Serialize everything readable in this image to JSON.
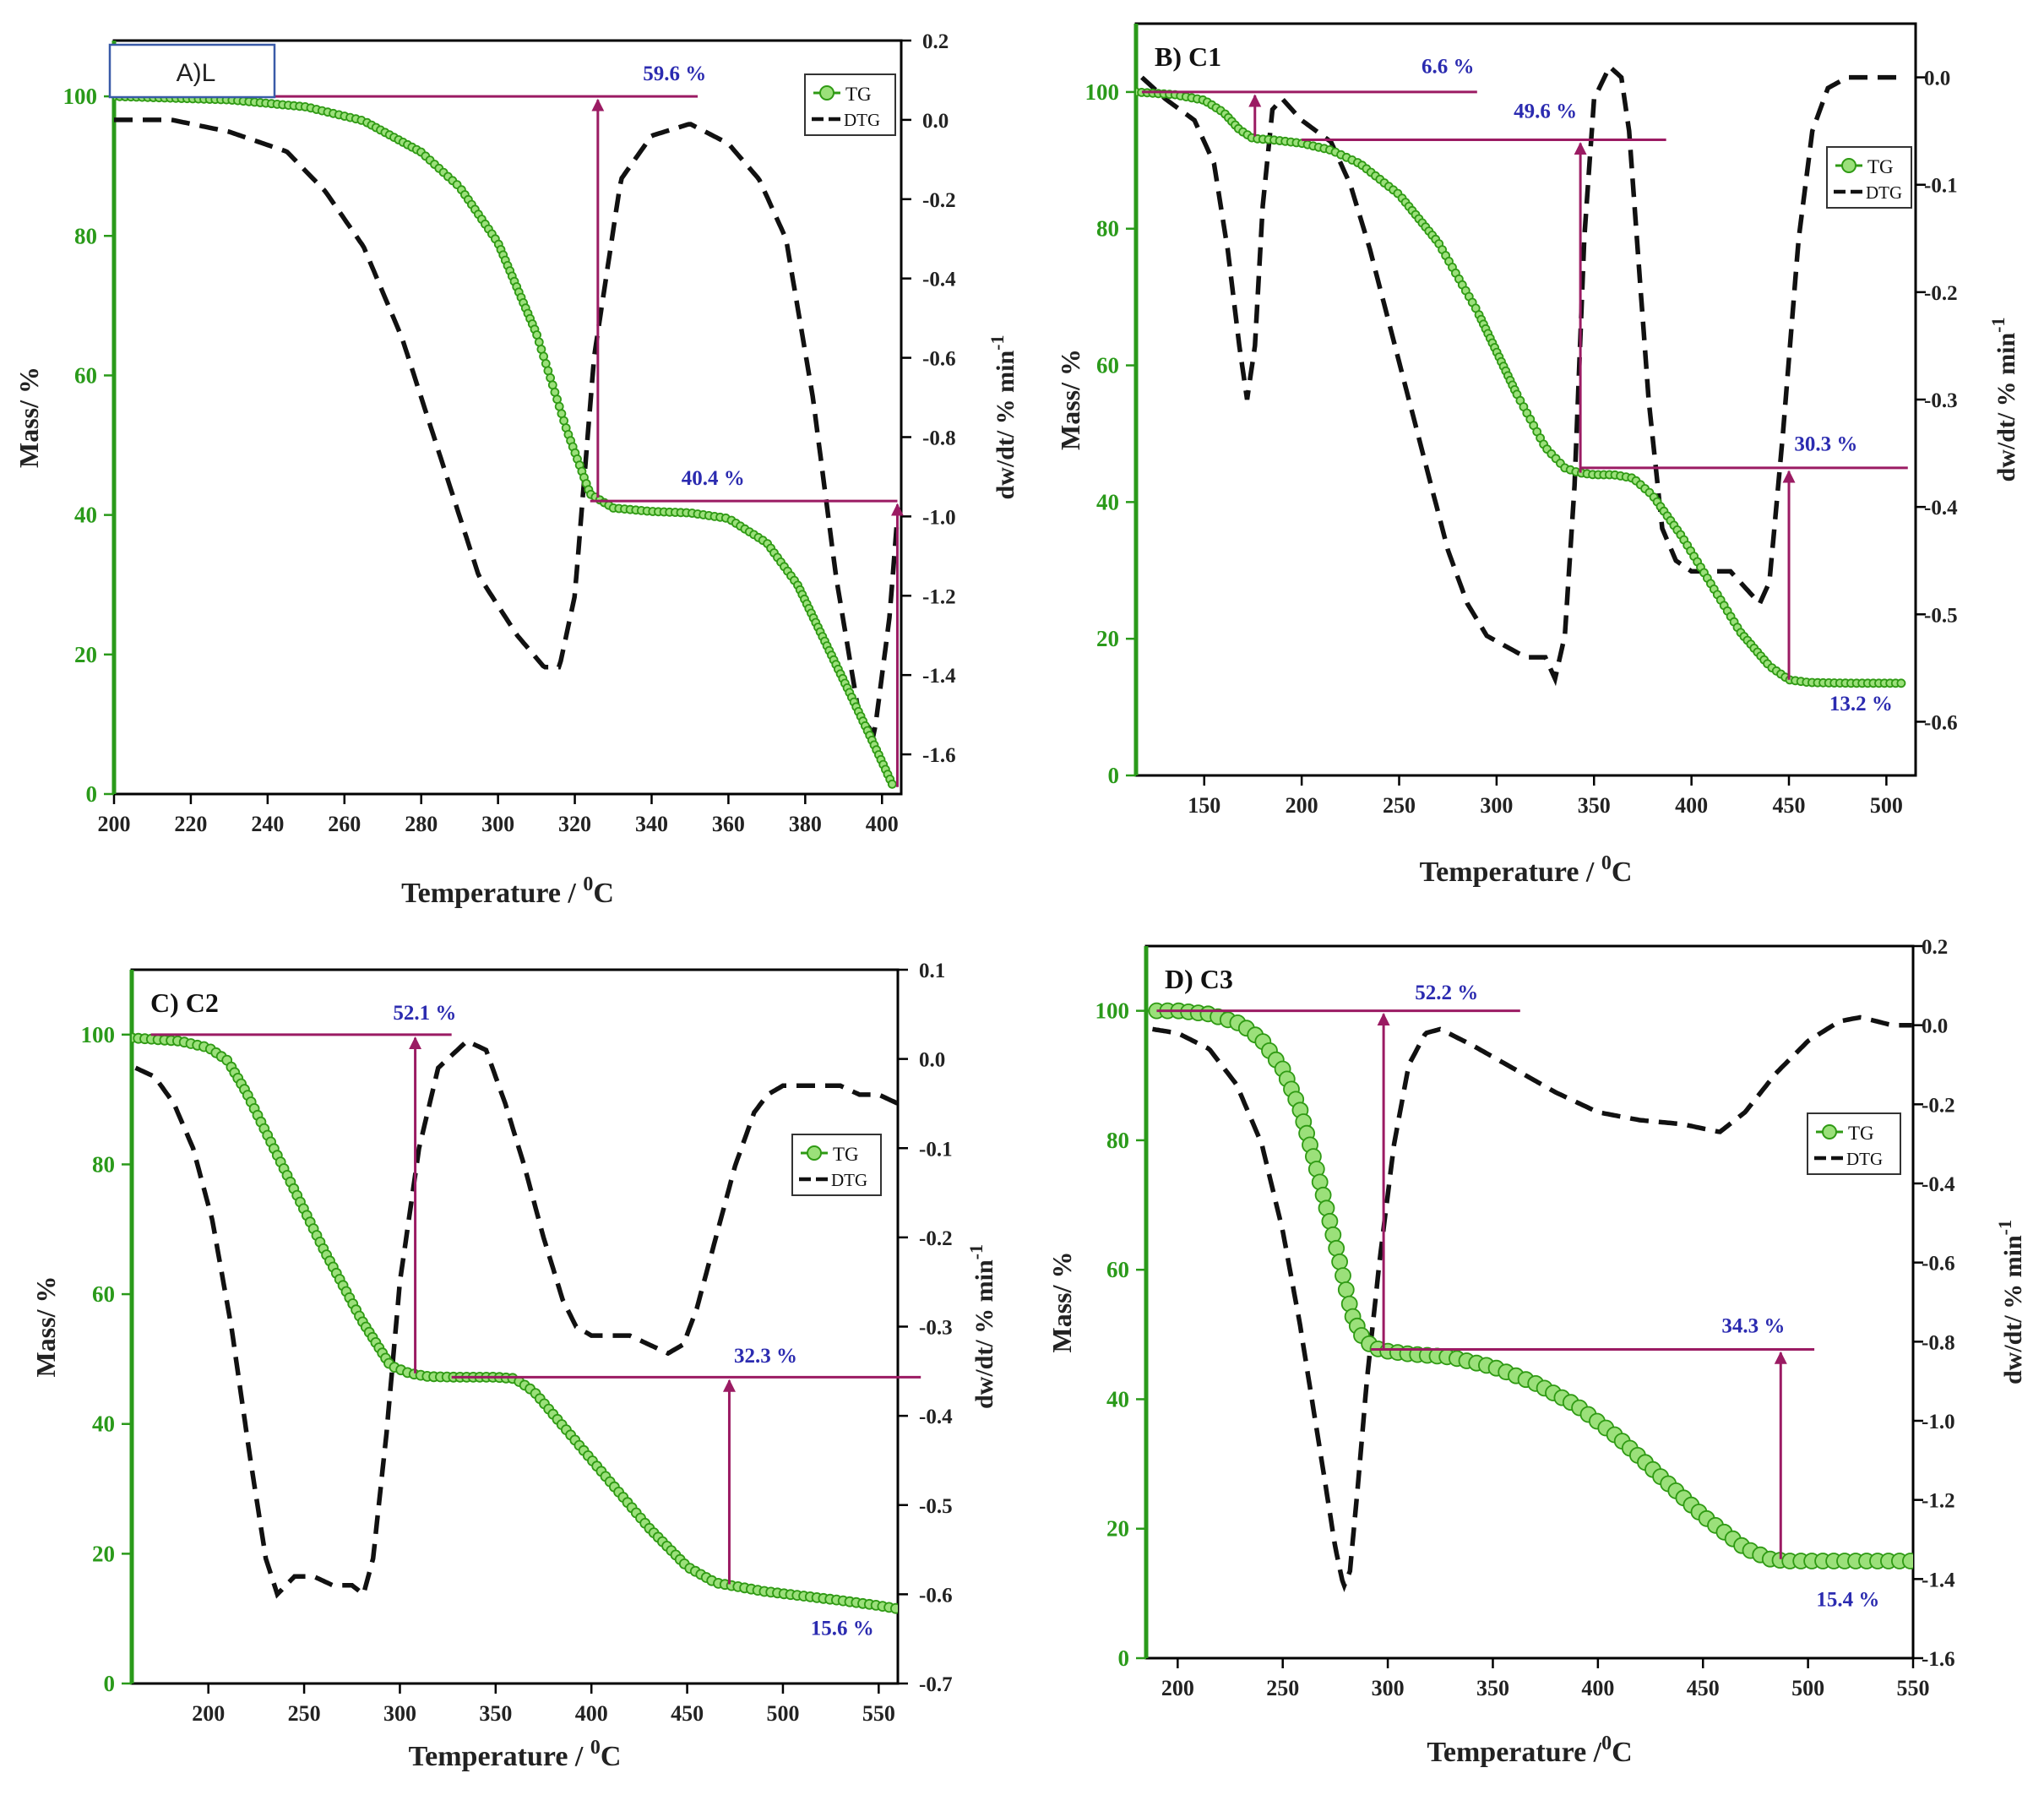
{
  "colors": {
    "tg": "#2f9a14",
    "tg_fill": "#9be07a",
    "axis_left": "#2a9a1a",
    "magenta": "#9b1b63",
    "annotation": "#2b2bb0",
    "dtg": "#111111"
  },
  "chart_data": [
    {
      "type": "line",
      "panel_title": "A)L",
      "xlabel": "Temperature / ",
      "xlabel_sup": "0",
      "xlabel_tail": "C",
      "ylabel": "Mass/ %",
      "y2label": "dw/dt/ % min",
      "y2label_sup": "-1",
      "xlim": [
        200,
        405
      ],
      "xticks": [
        200,
        220,
        240,
        260,
        280,
        300,
        320,
        340,
        360,
        380,
        400
      ],
      "ylim": [
        0,
        108
      ],
      "yticks": [
        0,
        20,
        40,
        60,
        80,
        100
      ],
      "y2lim": [
        -1.7,
        0.2
      ],
      "y2ticks": [
        0.2,
        0.0,
        -0.2,
        -0.4,
        -0.6,
        -0.8,
        -1.0,
        -1.2,
        -1.4,
        -1.6
      ],
      "y2tick_labels": [
        "0.2",
        "0.0",
        "-0.2",
        "-0.4",
        "-0.6",
        "-0.8",
        "-1.0",
        "-1.2",
        "-1.4",
        "-1.6"
      ],
      "legend": {
        "position": "top-right",
        "tg_label": "TG",
        "dtg_label": "DTG"
      },
      "series": [
        {
          "name": "TG",
          "axis": "left",
          "x": [
            200,
            230,
            250,
            265,
            280,
            290,
            300,
            310,
            318,
            324,
            330,
            340,
            350,
            360,
            370,
            378,
            385,
            392,
            398,
            403
          ],
          "y": [
            100,
            99.5,
            98.5,
            96.5,
            92,
            87,
            79,
            66,
            52,
            43,
            41,
            40.5,
            40.3,
            39.5,
            36,
            30,
            22,
            14,
            7,
            1
          ]
        },
        {
          "name": "DTG",
          "axis": "right",
          "x": [
            200,
            215,
            230,
            245,
            255,
            265,
            275,
            285,
            295,
            305,
            312,
            316,
            320,
            325,
            332,
            340,
            350,
            360,
            368,
            375,
            382,
            388,
            394,
            398,
            402,
            404
          ],
          "y": [
            0.0,
            0.0,
            -0.03,
            -0.08,
            -0.18,
            -0.32,
            -0.55,
            -0.85,
            -1.15,
            -1.3,
            -1.38,
            -1.38,
            -1.2,
            -0.6,
            -0.15,
            -0.04,
            -0.01,
            -0.06,
            -0.15,
            -0.3,
            -0.7,
            -1.15,
            -1.5,
            -1.55,
            -1.25,
            -1.0
          ]
        }
      ],
      "annotations": [
        {
          "text": "59.6 %",
          "label_x": 346,
          "label_y": 102.3,
          "hline": {
            "x0": 200,
            "x1": 352,
            "y": 100
          },
          "arrow": {
            "x": 326,
            "y_from": 42.5,
            "y_to": 99.5
          }
        },
        {
          "text": "40.4 %",
          "label_x": 356,
          "label_y": 44.3,
          "hline": {
            "x0": 324,
            "x1": 404,
            "y": 42
          },
          "arrow": {
            "x": 404,
            "y_from": 1,
            "y_to": 41.5
          }
        }
      ]
    },
    {
      "type": "line",
      "panel_title": "B) C1",
      "xlabel": "Temperature / ",
      "xlabel_sup": "0",
      "xlabel_tail": "C",
      "ylabel": "Mass/ %",
      "y2label": "dw/dt/ % min",
      "y2label_sup": "-1",
      "xlim": [
        115,
        515
      ],
      "xticks": [
        150,
        200,
        250,
        300,
        350,
        400,
        450,
        500
      ],
      "ylim": [
        0,
        110
      ],
      "yticks": [
        0,
        20,
        40,
        60,
        80,
        100
      ],
      "y2lim": [
        -0.65,
        0.05
      ],
      "y2ticks": [
        0.0,
        -0.1,
        -0.2,
        -0.3,
        -0.4,
        -0.5,
        -0.6
      ],
      "y2tick_labels": [
        "0.0",
        "-0.1",
        "-0.2",
        "-0.3",
        "-0.4",
        "-0.5",
        "-0.6"
      ],
      "legend": {
        "position": "top-right",
        "tg_label": "TG",
        "dtg_label": "DTG"
      },
      "series": [
        {
          "name": "TG",
          "axis": "left",
          "x": [
            115,
            135,
            150,
            160,
            168,
            175,
            185,
            200,
            215,
            230,
            250,
            270,
            290,
            310,
            325,
            335,
            342,
            350,
            360,
            370,
            380,
            395,
            410,
            425,
            440,
            450,
            460,
            480,
            510
          ],
          "y": [
            100,
            99.6,
            98.8,
            97,
            94.5,
            93.2,
            93,
            92.5,
            91.5,
            89.5,
            85,
            78,
            68,
            56,
            48,
            45,
            44.3,
            44,
            44,
            43.5,
            41,
            35,
            28,
            21,
            16,
            14,
            13.6,
            13.5,
            13.5
          ]
        },
        {
          "name": "DTG",
          "axis": "right",
          "x": [
            118,
            130,
            145,
            155,
            162,
            168,
            172,
            176,
            180,
            185,
            190,
            200,
            215,
            225,
            235,
            245,
            255,
            265,
            275,
            285,
            295,
            305,
            315,
            325,
            330,
            335,
            340,
            345,
            350,
            358,
            364,
            368,
            372,
            378,
            385,
            392,
            400,
            410,
            420,
            430,
            435,
            440,
            447,
            455,
            462,
            470,
            480,
            495,
            510
          ],
          "y": [
            0.0,
            -0.02,
            -0.04,
            -0.08,
            -0.16,
            -0.25,
            -0.3,
            -0.25,
            -0.12,
            -0.03,
            -0.02,
            -0.04,
            -0.06,
            -0.1,
            -0.16,
            -0.23,
            -0.3,
            -0.37,
            -0.44,
            -0.49,
            -0.52,
            -0.53,
            -0.54,
            -0.54,
            -0.56,
            -0.52,
            -0.38,
            -0.15,
            -0.02,
            0.01,
            0.0,
            -0.05,
            -0.15,
            -0.3,
            -0.42,
            -0.45,
            -0.46,
            -0.46,
            -0.46,
            -0.48,
            -0.49,
            -0.47,
            -0.33,
            -0.15,
            -0.05,
            -0.01,
            0.0,
            0.0,
            0.0
          ]
        }
      ],
      "annotations": [
        {
          "text": "6.6 %",
          "label_x": 275,
          "label_y": 102.8,
          "hline": {
            "x0": 118,
            "x1": 290,
            "y": 100
          },
          "arrow": {
            "x": 176,
            "y_from": 93.5,
            "y_to": 99.5
          }
        },
        {
          "text": "49.6 %",
          "label_x": 325,
          "label_y": 96.2,
          "hline": {
            "x0": 200,
            "x1": 387,
            "y": 93
          },
          "arrow": {
            "x": 343,
            "y_from": 44.3,
            "y_to": 92.5
          }
        },
        {
          "text": "30.3 %",
          "label_x": 469,
          "label_y": 47.5,
          "hline": {
            "x0": 343,
            "x1": 511,
            "y": 45
          },
          "arrow": {
            "x": 450,
            "y_from": 14,
            "y_to": 44.5
          }
        },
        {
          "text": "13.2 %",
          "label_x": 487,
          "label_y": 9.5,
          "hline": null,
          "arrow": null
        }
      ]
    },
    {
      "type": "line",
      "panel_title": "C) C2",
      "xlabel": "Temperature / ",
      "xlabel_sup": "0",
      "xlabel_tail": "C",
      "ylabel": "Mass/ %",
      "y2label": "dw/dt/ % min",
      "y2label_sup": "-1",
      "xlim": [
        160,
        560
      ],
      "xticks": [
        200,
        250,
        300,
        350,
        400,
        450,
        500,
        550
      ],
      "ylim": [
        0,
        110
      ],
      "yticks": [
        0,
        20,
        40,
        60,
        80,
        100
      ],
      "y2lim": [
        -0.7,
        0.1
      ],
      "y2ticks": [
        0.1,
        0.0,
        -0.1,
        -0.2,
        -0.3,
        -0.4,
        -0.5,
        -0.6,
        -0.7
      ],
      "y2tick_labels": [
        "0.1",
        "0.0",
        "-0.1",
        "-0.2",
        "-0.3",
        "-0.4",
        "-0.5",
        "-0.6",
        "-0.7"
      ],
      "legend": {
        "position": "right",
        "tg_label": "TG",
        "dtg_label": "DTG"
      },
      "series": [
        {
          "name": "TG",
          "axis": "left",
          "x": [
            160,
            185,
            200,
            210,
            220,
            240,
            260,
            280,
            295,
            305,
            315,
            330,
            350,
            360,
            370,
            390,
            410,
            430,
            450,
            465,
            475,
            490,
            510,
            530,
            550,
            560
          ],
          "y": [
            99.5,
            99,
            98,
            96,
            91,
            79,
            67,
            56,
            49,
            47.8,
            47.3,
            47.2,
            47.2,
            47,
            45,
            38,
            31,
            24,
            18,
            15.5,
            15,
            14.2,
            13.5,
            12.8,
            12,
            11.5
          ]
        },
        {
          "name": "DTG",
          "axis": "right",
          "x": [
            162,
            172,
            182,
            192,
            202,
            212,
            222,
            230,
            236,
            245,
            255,
            265,
            275,
            281,
            286,
            293,
            300,
            310,
            320,
            330,
            335,
            345,
            355,
            365,
            375,
            385,
            392,
            400,
            412,
            420,
            430,
            440,
            448,
            455,
            465,
            475,
            485,
            492,
            500,
            510,
            520,
            530,
            540,
            550,
            560
          ],
          "y": [
            -0.01,
            -0.02,
            -0.05,
            -0.1,
            -0.18,
            -0.3,
            -0.45,
            -0.56,
            -0.6,
            -0.58,
            -0.58,
            -0.59,
            -0.59,
            -0.6,
            -0.56,
            -0.42,
            -0.25,
            -0.1,
            -0.01,
            0.01,
            0.02,
            0.01,
            -0.05,
            -0.12,
            -0.2,
            -0.27,
            -0.3,
            -0.31,
            -0.31,
            -0.31,
            -0.32,
            -0.33,
            -0.32,
            -0.28,
            -0.2,
            -0.12,
            -0.06,
            -0.04,
            -0.03,
            -0.03,
            -0.03,
            -0.03,
            -0.04,
            -0.04,
            -0.05
          ]
        }
      ],
      "annotations": [
        {
          "text": "52.1 %",
          "label_x": 313,
          "label_y": 102.3,
          "hline": {
            "x0": 170,
            "x1": 327,
            "y": 100
          },
          "arrow": {
            "x": 308,
            "y_from": 47.8,
            "y_to": 99.5
          }
        },
        {
          "text": "32.3 %",
          "label_x": 491,
          "label_y": 49.5,
          "hline": {
            "x0": 327,
            "x1": 572,
            "y": 47.2
          },
          "arrow": {
            "x": 472,
            "y_from": 15.3,
            "y_to": 46.7
          }
        },
        {
          "text": "15.6 %",
          "label_x": 531,
          "label_y": 7.5,
          "hline": null,
          "arrow": null
        }
      ]
    },
    {
      "type": "line",
      "panel_title": "D) C3",
      "xlabel": "Temperature /",
      "xlabel_sup": "0",
      "xlabel_tail": "C",
      "ylabel": "Mass/ %",
      "y2label": "dw/dt/ % min",
      "y2label_sup": "-1",
      "xlim": [
        185,
        550
      ],
      "xticks": [
        200,
        250,
        300,
        350,
        400,
        450,
        500,
        550
      ],
      "ylim": [
        0,
        110
      ],
      "yticks": [
        0,
        20,
        40,
        60,
        80,
        100
      ],
      "y2lim": [
        -1.6,
        0.2
      ],
      "y2ticks": [
        0.2,
        0.0,
        -0.2,
        -0.4,
        -0.6,
        -0.8,
        -1.0,
        -1.2,
        -1.4,
        -1.6
      ],
      "y2tick_labels": [
        "0.2",
        "0.0",
        "-0.2",
        "-0.4",
        "-0.6",
        "-0.8",
        "-1.0",
        "-1.2",
        "-1.4",
        "-1.6"
      ],
      "legend": {
        "position": "right",
        "tg_label": "TG",
        "dtg_label": "DTG"
      },
      "series": [
        {
          "name": "TG",
          "axis": "left",
          "x": [
            190,
            200,
            215,
            230,
            240,
            250,
            258,
            265,
            272,
            278,
            283,
            288,
            293,
            298,
            310,
            330,
            350,
            370,
            390,
            410,
            430,
            450,
            470,
            482,
            490,
            500,
            520,
            550
          ],
          "y": [
            100,
            100,
            99.5,
            98,
            95.5,
            91,
            85,
            77,
            68,
            60,
            53,
            49.5,
            48,
            47.5,
            47,
            46.5,
            45,
            42.5,
            39,
            34,
            28,
            22,
            17,
            15.3,
            15,
            15,
            15,
            15
          ]
        },
        {
          "name": "DTG",
          "axis": "right",
          "x": [
            188,
            200,
            215,
            228,
            240,
            250,
            258,
            264,
            270,
            275,
            279,
            282,
            286,
            290,
            296,
            303,
            310,
            318,
            325,
            340,
            360,
            380,
            400,
            420,
            440,
            458,
            470,
            485,
            500,
            515,
            525,
            540,
            550
          ],
          "y": [
            -0.01,
            -0.02,
            -0.06,
            -0.15,
            -0.3,
            -0.52,
            -0.75,
            -0.95,
            -1.15,
            -1.32,
            -1.42,
            -1.38,
            -1.15,
            -0.9,
            -0.6,
            -0.3,
            -0.1,
            -0.02,
            -0.01,
            -0.05,
            -0.11,
            -0.17,
            -0.22,
            -0.24,
            -0.25,
            -0.27,
            -0.22,
            -0.12,
            -0.04,
            0.01,
            0.02,
            0.0,
            0.0
          ]
        }
      ],
      "annotations": [
        {
          "text": "52.2 %",
          "label_x": 328,
          "label_y": 101.8,
          "hline": {
            "x0": 190,
            "x1": 363,
            "y": 100
          },
          "arrow": {
            "x": 298,
            "y_from": 47.5,
            "y_to": 99.5
          }
        },
        {
          "text": "34.3 %",
          "label_x": 474,
          "label_y": 50.3,
          "hline": {
            "x0": 292,
            "x1": 503,
            "y": 47.7
          },
          "arrow": {
            "x": 487,
            "y_from": 15.3,
            "y_to": 47.2
          }
        },
        {
          "text": "15.4 %",
          "label_x": 519,
          "label_y": 8,
          "hline": null,
          "arrow": null
        }
      ]
    }
  ]
}
